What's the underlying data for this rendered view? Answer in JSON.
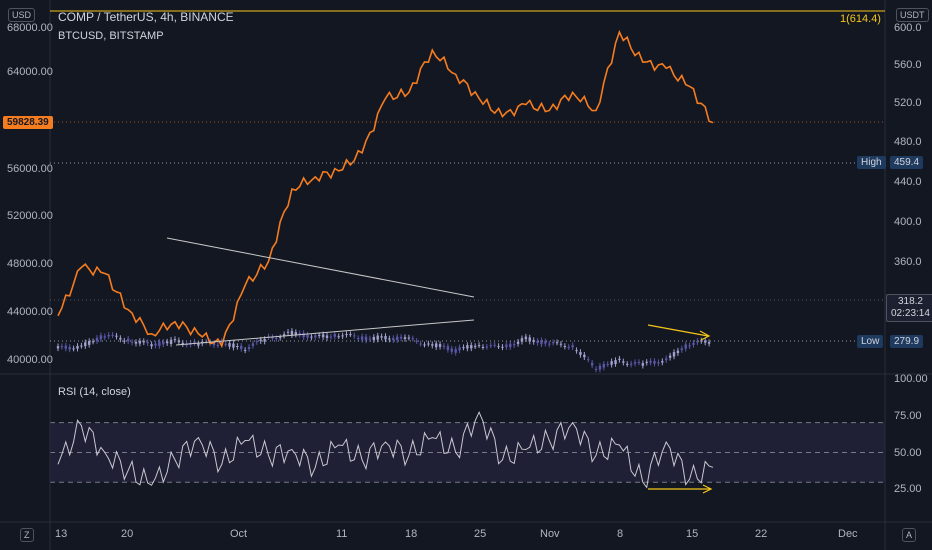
{
  "legend": {
    "symbol_line": "COMP / TetherUS, 4h, BINANCE",
    "overlay_line": "BTCUSD, BITSTAMP",
    "rsi_line": "RSI (14, close)"
  },
  "left_axis": {
    "currency": "USD",
    "ticks": [
      "68000.00",
      "64000.00",
      "56000.00",
      "52000.00",
      "48000.00",
      "44000.00",
      "40000.00"
    ],
    "current_price": "59828.39"
  },
  "right_axis": {
    "currency": "USDT",
    "ticks": [
      "600.0",
      "560.0",
      "520.0",
      "480.0",
      "440.0",
      "400.0",
      "360.0"
    ],
    "marker": "1(614.4)",
    "high_label": "High",
    "high_value": "459.4",
    "low_label": "Low",
    "low_value": "279.9",
    "last_price": "318.2",
    "countdown": "02:23:14"
  },
  "rsi_axis": {
    "ticks": [
      "100.00",
      "75.00",
      "50.00",
      "25.00"
    ]
  },
  "x_axis": {
    "labels": [
      "13",
      "20",
      "Oct",
      "11",
      "18",
      "25",
      "Nov",
      "8",
      "15",
      "22",
      "Dec"
    ]
  },
  "corners": {
    "left": "Z",
    "right": "A"
  },
  "colors": {
    "background": "#131722",
    "comp_up": "#a2a1ce",
    "comp_down": "#5a57a8",
    "btc_line": "#f57c1f",
    "rsi_line": "#c8c8d0",
    "divergence": "#f5c518",
    "trendline": "#c8c8c8",
    "high_badge": "#1e3a5f"
  },
  "chart_data": [
    {
      "type": "line",
      "title": "COMP / TetherUS, 4h, BINANCE",
      "series": [
        {
          "name": "BTCUSD, BITSTAMP",
          "x": [
            "Sep 13",
            "Sep 15",
            "Sep 17",
            "Sep 20",
            "Sep 22",
            "Sep 24",
            "Sep 27",
            "Sep 29",
            "Oct 1",
            "Oct 4",
            "Oct 6",
            "Oct 8",
            "Oct 11",
            "Oct 13",
            "Oct 15",
            "Oct 18",
            "Oct 20",
            "Oct 22",
            "Oct 25",
            "Oct 27",
            "Oct 29",
            "Nov 1",
            "Nov 3",
            "Nov 5",
            "Nov 8",
            "Nov 10",
            "Nov 12",
            "Nov 15",
            "Nov 17"
          ],
          "values": [
            44000,
            48000,
            47500,
            44500,
            42500,
            43500,
            42500,
            41500,
            46500,
            48500,
            54500,
            55500,
            56000,
            57500,
            62000,
            62500,
            66000,
            64000,
            62000,
            60500,
            61500,
            61000,
            62500,
            61000,
            67500,
            65000,
            64500,
            63000,
            60000
          ]
        }
      ],
      "y_axis_left": [
        40000,
        68000
      ]
    },
    {
      "type": "line",
      "title": "RSI (14, close)",
      "ylim": [
        0,
        100
      ],
      "series": [
        {
          "name": "RSI (14, close)",
          "x": [
            "Sep 13",
            "Sep 15",
            "Sep 17",
            "Sep 20",
            "Sep 22",
            "Sep 24",
            "Sep 27",
            "Sep 29",
            "Oct 1",
            "Oct 4",
            "Oct 6",
            "Oct 8",
            "Oct 11",
            "Oct 13",
            "Oct 15",
            "Oct 18",
            "Oct 20",
            "Oct 22",
            "Oct 25",
            "Oct 27",
            "Oct 29",
            "Nov 1",
            "Nov 3",
            "Nov 5",
            "Nov 8",
            "Nov 10",
            "Nov 12",
            "Nov 15",
            "Nov 17"
          ],
          "values": [
            42,
            68,
            50,
            38,
            28,
            45,
            60,
            42,
            58,
            48,
            52,
            40,
            55,
            45,
            57,
            48,
            60,
            50,
            77,
            45,
            52,
            58,
            70,
            48,
            55,
            30,
            57,
            32,
            40
          ]
        }
      ],
      "bands": [
        30,
        50,
        70
      ]
    }
  ]
}
